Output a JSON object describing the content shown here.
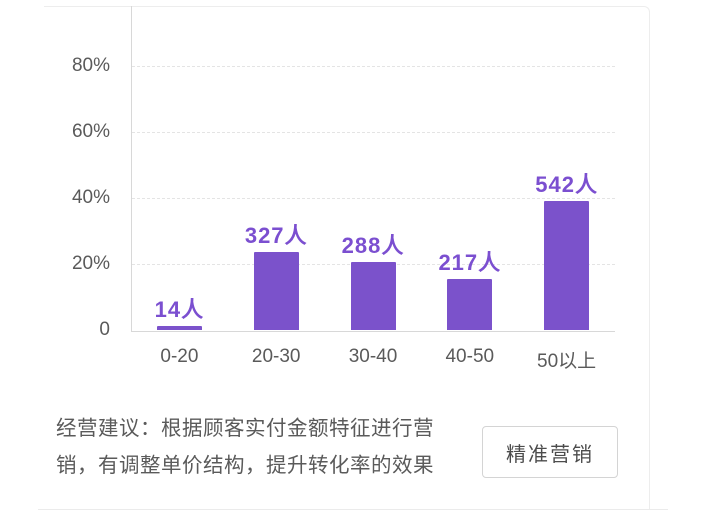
{
  "chart_data": {
    "type": "bar",
    "title": "",
    "categories": [
      "0-20",
      "20-30",
      "30-40",
      "40-50",
      "50以上"
    ],
    "counts": [
      14,
      327,
      288,
      217,
      542
    ],
    "point_labels": [
      "14人",
      "327人",
      "288人",
      "217人",
      "542人"
    ],
    "values_percent": [
      1.0,
      23.6,
      20.7,
      15.6,
      39.0
    ],
    "y_ticks": [
      {
        "value": 0,
        "label": "0"
      },
      {
        "value": 20,
        "label": "20%"
      },
      {
        "value": 40,
        "label": "40%"
      },
      {
        "value": 60,
        "label": "60%"
      },
      {
        "value": 80,
        "label": "80%"
      }
    ],
    "ylim": [
      0,
      100
    ],
    "grid": "horizontal-dashed",
    "legend": "none",
    "colors": {
      "bar": "#7b52cb",
      "value_label": "#7b4fd0",
      "axis_line": "#d8d8d8",
      "gridline": "#e4e4e4",
      "tick_text": "#5a5a5a"
    }
  },
  "footer": {
    "suggestion_line1": "经营建议：根据顾客实付金额特征进行营",
    "suggestion_line2": "销，有调整单价结构，提升转化率的效果",
    "button_label": "精准营销"
  }
}
